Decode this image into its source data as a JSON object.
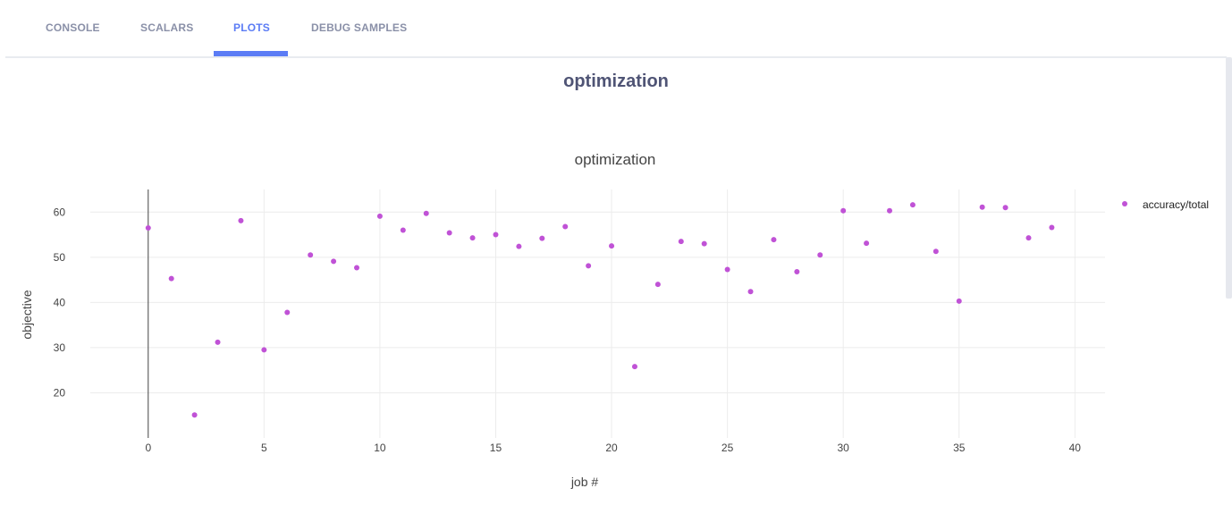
{
  "tabs": [
    {
      "label": "CONSOLE",
      "active": false
    },
    {
      "label": "SCALARS",
      "active": false
    },
    {
      "label": "PLOTS",
      "active": true
    },
    {
      "label": "DEBUG SAMPLES",
      "active": false
    }
  ],
  "section_title": "optimization",
  "colors": {
    "accent": "#5b7cf5",
    "marker": "#c052d6"
  },
  "chart_data": {
    "type": "scatter",
    "title": "optimization",
    "xlabel": "job #",
    "ylabel": "objective",
    "xlim": [
      -2.5,
      41.3
    ],
    "ylim": [
      10,
      65
    ],
    "xticks": [
      0,
      5,
      10,
      15,
      20,
      25,
      30,
      35,
      40
    ],
    "yticks": [
      20,
      30,
      40,
      50,
      60
    ],
    "grid": true,
    "legend_position": "top-right",
    "series": [
      {
        "name": "accuracy/total",
        "color": "#c052d6",
        "x": [
          0,
          1,
          2,
          3,
          4,
          5,
          6,
          7,
          8,
          9,
          10,
          11,
          12,
          13,
          14,
          15,
          16,
          17,
          18,
          19,
          20,
          21,
          22,
          23,
          24,
          25,
          26,
          27,
          28,
          29,
          30,
          31,
          32,
          33,
          34,
          35,
          36,
          37,
          38,
          39
        ],
        "y": [
          56.5,
          45.3,
          15.1,
          31.2,
          58.1,
          29.5,
          37.8,
          50.5,
          49.1,
          47.7,
          59.1,
          56.0,
          59.7,
          55.4,
          54.3,
          55.0,
          52.4,
          54.2,
          56.8,
          48.1,
          52.5,
          25.8,
          44.0,
          53.5,
          53.0,
          47.3,
          42.4,
          53.9,
          46.8,
          50.5,
          60.3,
          53.1,
          60.3,
          61.6,
          51.3,
          40.3,
          61.1,
          61.0,
          54.3,
          56.6
        ]
      }
    ]
  }
}
